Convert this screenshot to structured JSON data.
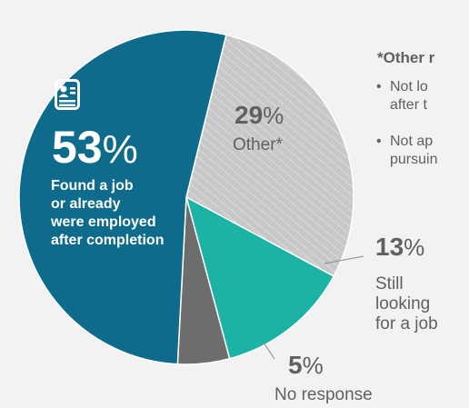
{
  "chart_data": {
    "type": "pie",
    "slices": [
      {
        "label": "Other*",
        "value": 29,
        "pct_display": "29",
        "color": "#c9c9c9"
      },
      {
        "label": "Still looking for a job",
        "value": 13,
        "pct_display": "13",
        "color": "#1ab3a6"
      },
      {
        "label": "No response",
        "value": 5,
        "pct_display": "5",
        "color": "#6d6d6d"
      },
      {
        "label": "Found a job or already were employed after completion",
        "value": 53,
        "pct_display": "53",
        "color": "#0f6b8c"
      }
    ],
    "pct_sign": "%"
  },
  "labels": {
    "found_line1": "Found a job",
    "found_line2": "or already",
    "found_line3": "were employed",
    "found_line4": "after completion",
    "other": "Other*",
    "still_line1": "Still",
    "still_line2": "looking",
    "still_line3": "for a job",
    "no_response": "No response"
  },
  "sidebar": {
    "title": "*Other r",
    "bullet1_line1": "Not lo",
    "bullet1_line2": "after t",
    "bullet2_line1": "Not ap",
    "bullet2_line2": "pursuin"
  },
  "icons": {
    "found": "resume-document-icon"
  }
}
